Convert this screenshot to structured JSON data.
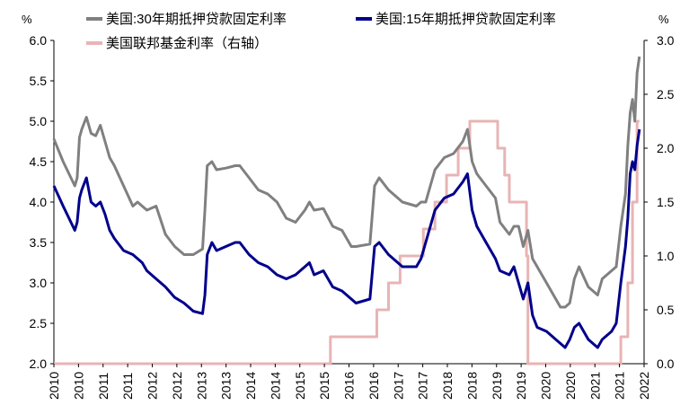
{
  "chart_data": {
    "type": "line",
    "y_left_unit": "%",
    "y_right_unit": "%",
    "ylim_left": [
      2.0,
      6.0
    ],
    "yticks_left": [
      "2.0",
      "2.5",
      "3.0",
      "3.5",
      "4.0",
      "4.5",
      "5.0",
      "5.5",
      "6.0"
    ],
    "ylim_right": [
      0.0,
      3.0
    ],
    "yticks_right": [
      "0.0",
      "0.5",
      "1.0",
      "1.5",
      "2.0",
      "2.5",
      "3.0"
    ],
    "xlim": [
      2010.0,
      2022.7
    ],
    "xticks": [
      "2010",
      "2010",
      "2011",
      "2011",
      "2012",
      "2012",
      "2013",
      "2013",
      "2014",
      "2014",
      "2015",
      "2015",
      "2016",
      "2016",
      "2017",
      "2017",
      "2018",
      "2018",
      "2019",
      "2019",
      "2020",
      "2020",
      "2021",
      "2021",
      "2022"
    ],
    "series": [
      {
        "name": "美国:30年期抵押贷款固定利率",
        "axis": "left",
        "color": "#808080",
        "x": [
          2010.0,
          2010.2,
          2010.45,
          2010.5,
          2010.55,
          2010.6,
          2010.7,
          2010.8,
          2010.9,
          2011.0,
          2011.1,
          2011.2,
          2011.3,
          2011.5,
          2011.7,
          2011.8,
          2011.9,
          2012.0,
          2012.2,
          2012.4,
          2012.6,
          2012.8,
          2013.0,
          2013.2,
          2013.25,
          2013.3,
          2013.4,
          2013.5,
          2013.7,
          2013.9,
          2014.0,
          2014.2,
          2014.4,
          2014.6,
          2014.8,
          2015.0,
          2015.2,
          2015.4,
          2015.5,
          2015.6,
          2015.8,
          2016.0,
          2016.2,
          2016.4,
          2016.5,
          2016.8,
          2016.9,
          2017.0,
          2017.2,
          2017.5,
          2017.8,
          2017.9,
          2018.0,
          2018.2,
          2018.4,
          2018.6,
          2018.8,
          2018.9,
          2019.0,
          2019.1,
          2019.3,
          2019.5,
          2019.6,
          2019.8,
          2019.9,
          2020.0,
          2020.1,
          2020.2,
          2020.3,
          2020.4,
          2020.6,
          2020.8,
          2020.9,
          2021.0,
          2021.1,
          2021.2,
          2021.3,
          2021.5,
          2021.7,
          2021.8,
          2021.9,
          2022.0,
          2022.1,
          2022.2,
          2022.3,
          2022.35,
          2022.4,
          2022.45,
          2022.5,
          2022.55,
          2022.6
        ],
        "values": [
          4.78,
          4.5,
          4.2,
          4.3,
          4.8,
          4.9,
          5.05,
          4.85,
          4.82,
          4.95,
          4.75,
          4.55,
          4.45,
          4.2,
          3.95,
          4.0,
          3.95,
          3.9,
          3.95,
          3.6,
          3.45,
          3.35,
          3.35,
          3.42,
          3.9,
          4.45,
          4.5,
          4.4,
          4.42,
          4.45,
          4.45,
          4.3,
          4.15,
          4.1,
          4.0,
          3.8,
          3.75,
          3.9,
          4.0,
          3.9,
          3.92,
          3.7,
          3.65,
          3.45,
          3.45,
          3.48,
          4.2,
          4.3,
          4.15,
          4.0,
          3.95,
          4.0,
          4.0,
          4.4,
          4.55,
          4.6,
          4.75,
          4.9,
          4.5,
          4.35,
          4.2,
          4.05,
          3.75,
          3.6,
          3.7,
          3.7,
          3.45,
          3.65,
          3.3,
          3.2,
          3.0,
          2.8,
          2.7,
          2.7,
          2.75,
          3.05,
          3.2,
          2.95,
          2.85,
          3.05,
          3.1,
          3.15,
          3.2,
          3.7,
          4.1,
          4.7,
          5.1,
          5.27,
          5.0,
          5.6,
          5.8
        ],
        "marker_label": "美国:30年期抵押贷款固定利率"
      },
      {
        "name": "美国:15年期抵押贷款固定利率",
        "axis": "left",
        "color": "#00008B",
        "x": [
          2010.0,
          2010.2,
          2010.45,
          2010.5,
          2010.55,
          2010.6,
          2010.7,
          2010.8,
          2010.9,
          2011.0,
          2011.1,
          2011.2,
          2011.3,
          2011.5,
          2011.7,
          2011.8,
          2011.9,
          2012.0,
          2012.2,
          2012.4,
          2012.6,
          2012.8,
          2013.0,
          2013.2,
          2013.25,
          2013.3,
          2013.4,
          2013.5,
          2013.7,
          2013.9,
          2014.0,
          2014.2,
          2014.4,
          2014.6,
          2014.8,
          2015.0,
          2015.2,
          2015.4,
          2015.5,
          2015.6,
          2015.8,
          2016.0,
          2016.2,
          2016.4,
          2016.5,
          2016.8,
          2016.9,
          2017.0,
          2017.2,
          2017.5,
          2017.8,
          2017.9,
          2018.0,
          2018.2,
          2018.4,
          2018.6,
          2018.8,
          2018.9,
          2019.0,
          2019.1,
          2019.3,
          2019.5,
          2019.6,
          2019.8,
          2019.9,
          2020.0,
          2020.1,
          2020.2,
          2020.3,
          2020.4,
          2020.6,
          2020.8,
          2020.9,
          2021.0,
          2021.1,
          2021.2,
          2021.3,
          2021.5,
          2021.7,
          2021.8,
          2021.9,
          2022.0,
          2022.1,
          2022.2,
          2022.3,
          2022.35,
          2022.4,
          2022.45,
          2022.5,
          2022.55,
          2022.6
        ],
        "values": [
          4.2,
          3.95,
          3.65,
          3.75,
          4.05,
          4.15,
          4.3,
          4.0,
          3.95,
          4.0,
          3.85,
          3.65,
          3.55,
          3.4,
          3.35,
          3.3,
          3.25,
          3.15,
          3.05,
          2.95,
          2.82,
          2.75,
          2.65,
          2.62,
          2.85,
          3.35,
          3.5,
          3.4,
          3.45,
          3.5,
          3.5,
          3.35,
          3.25,
          3.2,
          3.1,
          3.05,
          3.1,
          3.2,
          3.25,
          3.1,
          3.15,
          2.95,
          2.9,
          2.8,
          2.75,
          2.8,
          3.45,
          3.5,
          3.35,
          3.2,
          3.2,
          3.3,
          3.5,
          3.9,
          4.05,
          4.1,
          4.25,
          4.35,
          3.9,
          3.7,
          3.5,
          3.3,
          3.15,
          3.1,
          3.2,
          3.0,
          2.8,
          3.0,
          2.6,
          2.45,
          2.4,
          2.3,
          2.25,
          2.2,
          2.3,
          2.45,
          2.5,
          2.3,
          2.2,
          2.3,
          2.35,
          2.4,
          2.5,
          3.0,
          3.45,
          3.8,
          4.35,
          4.5,
          4.4,
          4.7,
          4.9
        ]
      },
      {
        "name": "美国联邦基金利率（右轴）",
        "axis": "right",
        "color": "#E8B4B4",
        "x": [
          2010.0,
          2015.95,
          2015.95,
          2016.95,
          2016.95,
          2017.2,
          2017.2,
          2017.45,
          2017.45,
          2017.95,
          2017.95,
          2018.2,
          2018.2,
          2018.45,
          2018.45,
          2018.7,
          2018.7,
          2018.95,
          2018.95,
          2019.55,
          2019.55,
          2019.7,
          2019.7,
          2019.8,
          2019.8,
          2020.17,
          2020.17,
          2020.2,
          2020.2,
          2022.2,
          2022.2,
          2022.35,
          2022.35,
          2022.45,
          2022.45,
          2022.55,
          2022.55,
          2022.6
        ],
        "values": [
          0.0,
          0.0,
          0.25,
          0.25,
          0.5,
          0.5,
          0.75,
          0.75,
          1.0,
          1.0,
          1.25,
          1.25,
          1.5,
          1.5,
          1.75,
          1.75,
          2.0,
          2.0,
          2.25,
          2.25,
          2.0,
          2.0,
          1.75,
          1.75,
          1.5,
          1.5,
          1.0,
          1.0,
          0.0,
          0.0,
          0.25,
          0.25,
          0.75,
          0.75,
          1.5,
          1.5,
          2.25,
          2.25
        ]
      }
    ]
  }
}
